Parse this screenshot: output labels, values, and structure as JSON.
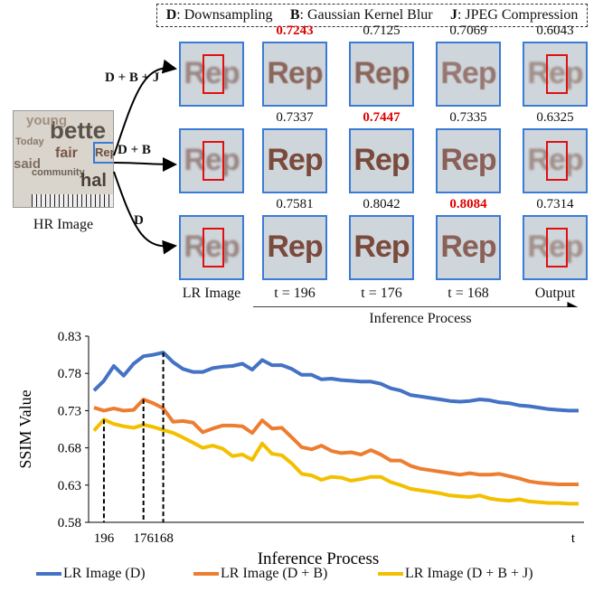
{
  "legend_top": [
    {
      "key": "D",
      "text": ": Downsampling"
    },
    {
      "key": "B",
      "text": ": Gaussian Kernel Blur"
    },
    {
      "key": "J",
      "text": ": JPEG Compression"
    }
  ],
  "hr_label": "HR Image",
  "hr_words": [
    "bette",
    "fair",
    "Rep",
    "young",
    "community",
    "Today",
    "said",
    "hal"
  ],
  "tile_text": "Rep",
  "rows": [
    {
      "label": "D + B + J",
      "scores": [
        "0.7243",
        "0.7125",
        "0.7069",
        "0.6043"
      ],
      "best_index": 0
    },
    {
      "label": "D + B",
      "scores": [
        "0.7337",
        "0.7447",
        "0.7335",
        "0.6325"
      ],
      "best_index": 1
    },
    {
      "label": "D",
      "scores": [
        "0.7581",
        "0.8042",
        "0.8084",
        "0.7314"
      ],
      "best_index": 2
    }
  ],
  "columns": [
    "LR Image",
    "t = 196",
    "t = 176",
    "t = 168",
    "Output"
  ],
  "process_label": "Inference Process",
  "chart_data": {
    "type": "line",
    "ylabel": "SSIM Value",
    "xlabel": "Inference Process",
    "ylim": [
      0.58,
      0.83
    ],
    "yticks": [
      "0.83",
      "0.78",
      "0.73",
      "0.68",
      "0.63",
      "0.58"
    ],
    "xticks": [
      "196",
      "176",
      "168",
      "t"
    ],
    "series": [
      {
        "name": "LR Image (D)",
        "color": "#4472c4",
        "values": [
          0.757,
          0.77,
          0.79,
          0.777,
          0.793,
          0.803,
          0.805,
          0.808,
          0.795,
          0.786,
          0.782,
          0.782,
          0.787,
          0.789,
          0.79,
          0.793,
          0.785,
          0.798,
          0.791,
          0.791,
          0.786,
          0.778,
          0.778,
          0.772,
          0.773,
          0.771,
          0.77,
          0.769,
          0.769,
          0.766,
          0.76,
          0.757,
          0.751,
          0.749,
          0.747,
          0.745,
          0.743,
          0.742,
          0.743,
          0.745,
          0.744,
          0.741,
          0.74,
          0.737,
          0.736,
          0.734,
          0.732,
          0.731,
          0.73,
          0.73
        ]
      },
      {
        "name": "LR Image (D + B)",
        "color": "#ed7d31",
        "values": [
          0.734,
          0.73,
          0.733,
          0.73,
          0.731,
          0.745,
          0.74,
          0.733,
          0.715,
          0.716,
          0.714,
          0.701,
          0.706,
          0.71,
          0.71,
          0.709,
          0.7,
          0.717,
          0.706,
          0.707,
          0.694,
          0.681,
          0.678,
          0.683,
          0.676,
          0.673,
          0.674,
          0.671,
          0.677,
          0.671,
          0.663,
          0.663,
          0.656,
          0.652,
          0.65,
          0.648,
          0.646,
          0.644,
          0.646,
          0.644,
          0.644,
          0.645,
          0.642,
          0.639,
          0.635,
          0.633,
          0.632,
          0.631,
          0.631,
          0.631
        ]
      },
      {
        "name": "LR Image (D + B + J)",
        "color": "#f3c000",
        "values": [
          0.703,
          0.718,
          0.712,
          0.709,
          0.707,
          0.711,
          0.708,
          0.704,
          0.7,
          0.694,
          0.687,
          0.68,
          0.683,
          0.679,
          0.669,
          0.671,
          0.664,
          0.686,
          0.672,
          0.67,
          0.659,
          0.645,
          0.643,
          0.637,
          0.641,
          0.64,
          0.636,
          0.638,
          0.641,
          0.641,
          0.634,
          0.63,
          0.625,
          0.623,
          0.621,
          0.619,
          0.616,
          0.615,
          0.614,
          0.616,
          0.612,
          0.61,
          0.609,
          0.611,
          0.608,
          0.607,
          0.606,
          0.606,
          0.605,
          0.605
        ]
      }
    ]
  }
}
